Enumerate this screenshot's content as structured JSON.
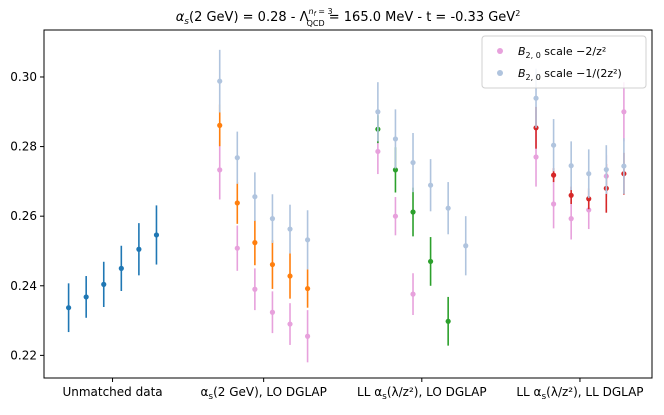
{
  "chart_data": {
    "type": "scatter",
    "title_parts": {
      "alpha_sym": "α",
      "alpha_sub": "s",
      "alpha_rest": "(2 GeV) =  0.28  -  ",
      "lambda_sym": "Λ",
      "lambda_sup": "n",
      "lambda_sup_sub": "f",
      "lambda_sup_rest": " = 3",
      "lambda_sub": "QCD",
      "lambda_rest": " = 165.0 MeV  -  t = -0.33 GeV",
      "t_sup": "2"
    },
    "ylim": [
      0.2135,
      0.3135
    ],
    "yticks": [
      0.22,
      0.24,
      0.26,
      0.28,
      0.3
    ],
    "ytick_labels": [
      "0.22",
      "0.24",
      "0.26",
      "0.28",
      "0.30"
    ],
    "xtick_labels": [
      {
        "pre": "Unmatched data"
      },
      {
        "pre": "α",
        "sub": "s",
        "post": "(2 GeV), LO DGLAP"
      },
      {
        "pre": "LL α",
        "sub": "s",
        "post": "(λ/z²), LO DGLAP"
      },
      {
        "pre": "LL α",
        "sub": "s",
        "post": "(λ/z²), LL DGLAP"
      }
    ],
    "legend": {
      "placement": "top-right",
      "entries": [
        {
          "series": "pink",
          "label_pre": "B",
          "label_sub": "2, 0",
          "label_post": " scale −2/z²"
        },
        {
          "series": "lightblue",
          "label_pre": "B",
          "label_sub": "2, 0",
          "label_post": " scale −1/(2z²)"
        }
      ]
    },
    "series": [
      {
        "key": "blue",
        "color": "#1f77b4",
        "points": [
          {
            "x": 0.0,
            "y": 0.2337,
            "err": 0.007
          },
          {
            "x": 0.5,
            "y": 0.2368,
            "err": 0.006
          },
          {
            "x": 1.0,
            "y": 0.2404,
            "err": 0.0065
          },
          {
            "x": 1.5,
            "y": 0.245,
            "err": 0.0065
          },
          {
            "x": 2.0,
            "y": 0.2505,
            "err": 0.0075
          },
          {
            "x": 2.5,
            "y": 0.2546,
            "err": 0.0085
          }
        ]
      },
      {
        "key": "pink",
        "color": "#e7a1dc",
        "points": [
          {
            "x": 4.3,
            "y": 0.2733,
            "err": 0.0085
          },
          {
            "x": 4.8,
            "y": 0.2508,
            "err": 0.0065
          },
          {
            "x": 5.3,
            "y": 0.239,
            "err": 0.006
          },
          {
            "x": 5.8,
            "y": 0.2324,
            "err": 0.006
          },
          {
            "x": 6.3,
            "y": 0.229,
            "err": 0.006
          },
          {
            "x": 6.8,
            "y": 0.2255,
            "err": 0.0075
          },
          {
            "x": 8.8,
            "y": 0.2786,
            "err": 0.0065
          },
          {
            "x": 9.3,
            "y": 0.26,
            "err": 0.0055
          },
          {
            "x": 9.8,
            "y": 0.2376,
            "err": 0.006
          },
          {
            "x": 13.3,
            "y": 0.277,
            "err": 0.0085
          },
          {
            "x": 13.8,
            "y": 0.2635,
            "err": 0.007
          },
          {
            "x": 14.3,
            "y": 0.2593,
            "err": 0.006
          },
          {
            "x": 14.8,
            "y": 0.2618,
            "err": 0.0055
          },
          {
            "x": 15.3,
            "y": 0.2715,
            "err": 0.006
          },
          {
            "x": 15.8,
            "y": 0.29,
            "err": 0.0085
          }
        ]
      },
      {
        "key": "orange",
        "color": "#ff7f0e",
        "points": [
          {
            "x": 4.3,
            "y": 0.2861,
            "err": 0.006
          },
          {
            "x": 4.8,
            "y": 0.2638,
            "err": 0.006
          },
          {
            "x": 5.3,
            "y": 0.2524,
            "err": 0.0065
          },
          {
            "x": 5.8,
            "y": 0.2461,
            "err": 0.007
          },
          {
            "x": 6.3,
            "y": 0.2428,
            "err": 0.0065
          },
          {
            "x": 6.8,
            "y": 0.2392,
            "err": 0.0055
          }
        ]
      },
      {
        "key": "green",
        "color": "#2ca02c",
        "points": [
          {
            "x": 8.8,
            "y": 0.285,
            "err": 0.004
          },
          {
            "x": 9.3,
            "y": 0.2733,
            "err": 0.0065
          },
          {
            "x": 9.8,
            "y": 0.2612,
            "err": 0.007
          },
          {
            "x": 10.3,
            "y": 0.247,
            "err": 0.007
          },
          {
            "x": 10.8,
            "y": 0.2298,
            "err": 0.007
          }
        ]
      },
      {
        "key": "red",
        "color": "#d62728",
        "points": [
          {
            "x": 13.3,
            "y": 0.2854,
            "err": 0.006
          },
          {
            "x": 13.8,
            "y": 0.2718,
            "err": 0.002
          },
          {
            "x": 14.3,
            "y": 0.266,
            "err": 0.0025
          },
          {
            "x": 14.8,
            "y": 0.265,
            "err": 0.003
          },
          {
            "x": 15.3,
            "y": 0.268,
            "err": 0.007
          },
          {
            "x": 15.8,
            "y": 0.2722,
            "err": 0.006
          }
        ]
      },
      {
        "key": "lightblue",
        "color": "#b0c4de",
        "points": [
          {
            "x": 4.3,
            "y": 0.2988,
            "err": 0.009
          },
          {
            "x": 4.8,
            "y": 0.2768,
            "err": 0.0075
          },
          {
            "x": 5.3,
            "y": 0.2656,
            "err": 0.007
          },
          {
            "x": 5.8,
            "y": 0.2593,
            "err": 0.007
          },
          {
            "x": 6.3,
            "y": 0.2563,
            "err": 0.007
          },
          {
            "x": 6.8,
            "y": 0.2532,
            "err": 0.0085
          },
          {
            "x": 8.8,
            "y": 0.29,
            "err": 0.0085
          },
          {
            "x": 9.3,
            "y": 0.2822,
            "err": 0.0085
          },
          {
            "x": 9.8,
            "y": 0.2754,
            "err": 0.0085
          },
          {
            "x": 10.3,
            "y": 0.2689,
            "err": 0.0075
          },
          {
            "x": 10.8,
            "y": 0.2623,
            "err": 0.0075
          },
          {
            "x": 11.3,
            "y": 0.2515,
            "err": 0.0085
          },
          {
            "x": 13.3,
            "y": 0.2939,
            "err": 0.0085
          },
          {
            "x": 13.8,
            "y": 0.2804,
            "err": 0.0075
          },
          {
            "x": 14.3,
            "y": 0.2745,
            "err": 0.007
          },
          {
            "x": 14.8,
            "y": 0.2722,
            "err": 0.007
          },
          {
            "x": 15.3,
            "y": 0.2734,
            "err": 0.007
          },
          {
            "x": 15.8,
            "y": 0.2744,
            "err": 0.008
          }
        ]
      }
    ],
    "xtick_positions": [
      1.25,
      5.55,
      10.05,
      14.55
    ],
    "xlim": [
      -0.7,
      16.6
    ]
  }
}
